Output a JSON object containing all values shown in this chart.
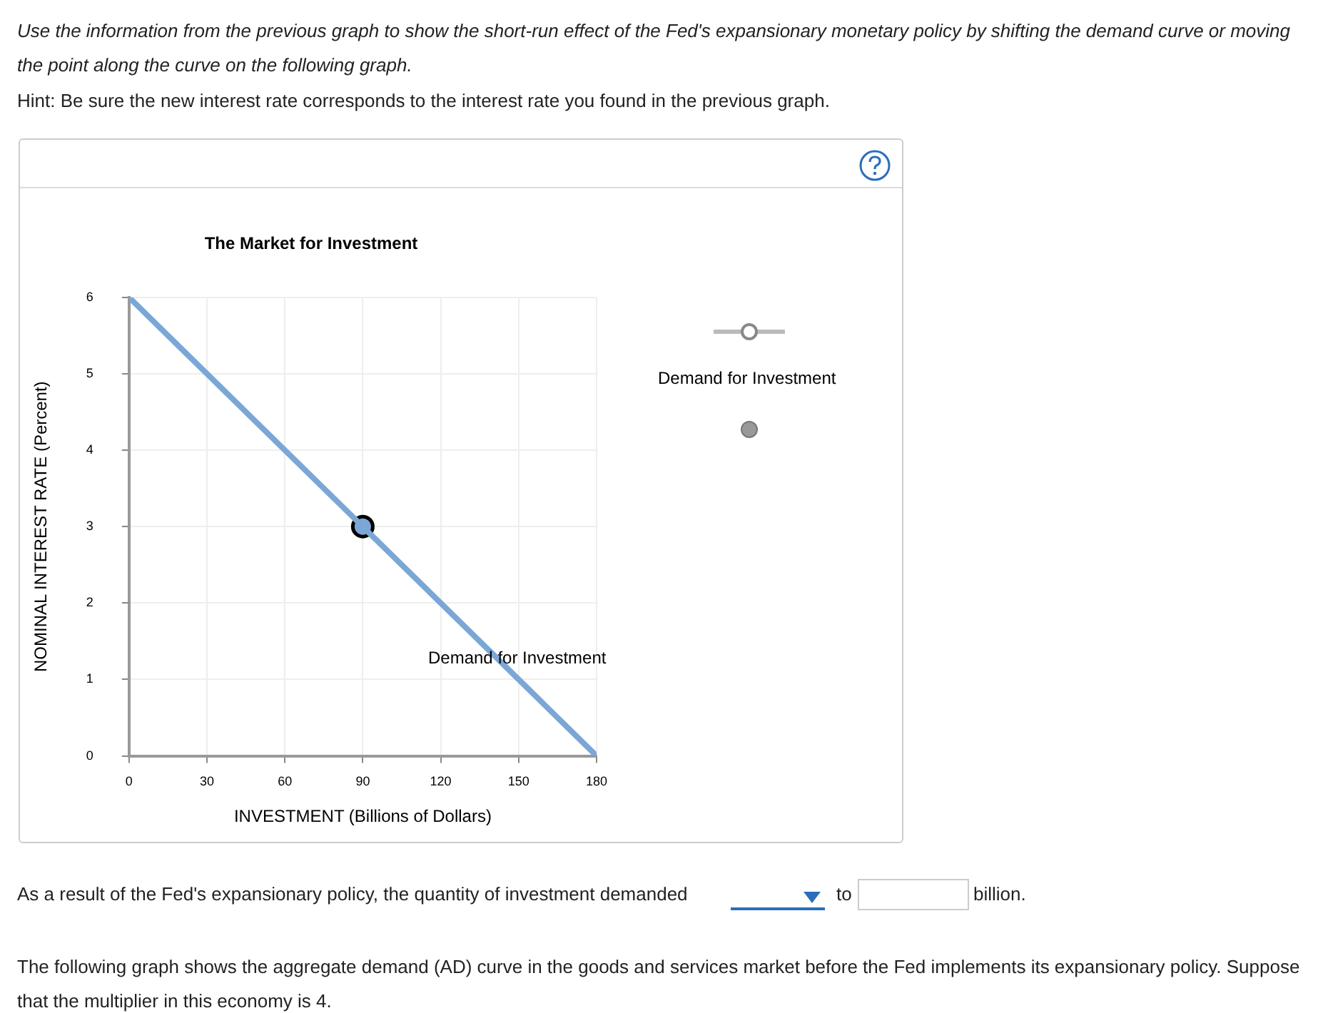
{
  "chart_data": {
    "type": "line",
    "title": "The Market for Investment",
    "xlabel": "INVESTMENT (Billions of Dollars)",
    "ylabel": "NOMINAL INTEREST RATE (Percent)",
    "xlim": [
      0,
      180
    ],
    "xticks": [
      0,
      30,
      60,
      90,
      120,
      150,
      180
    ],
    "ylim": [
      0,
      6
    ],
    "yticks": [
      0,
      1,
      2,
      3,
      4,
      5,
      6
    ],
    "grid": true,
    "legend": false,
    "series": [
      {
        "color": "#7ba7d6",
        "x": [
          0,
          180
        ],
        "values": [
          6,
          0
        ],
        "marker": "none"
      },
      {
        "type": "scatter",
        "color": "#7ba7d6",
        "x": [
          90
        ],
        "values": [
          3
        ],
        "marker": "circle"
      }
    ],
    "annotations": [
      "Use the information from the previous graph to show the short-run effect of the Fed's expansionary monetary policy by shifting the demand curve or moving the point along the curve on the following graph.",
      "Hint: Be sure the new interest rate corresponds to the interest rate you found in the previous graph.",
      "Demand for Investment",
      "As a result of the Fed's expansionary policy, the quantity of investment demanded",
      "to",
      "billion.",
      "The following graph shows the aggregate demand (AD) curve in the goods and services market before the Fed implements its expansionary policy. Suppose that the multiplier in this economy is 4.",
      "Demand for Investment"
    ]
  }
}
